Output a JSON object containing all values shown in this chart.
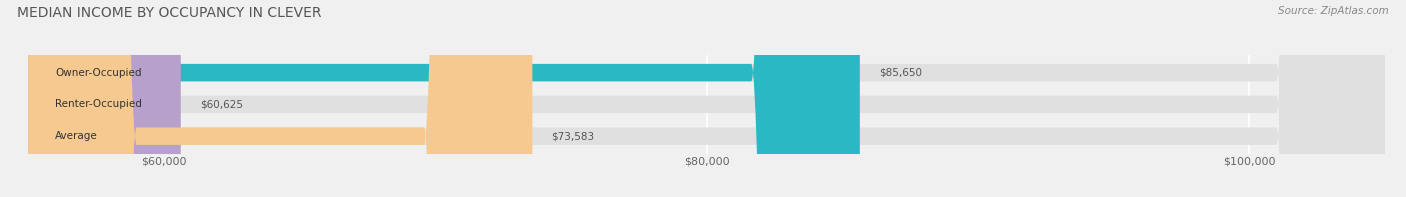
{
  "title": "MEDIAN INCOME BY OCCUPANCY IN CLEVER",
  "source": "Source: ZipAtlas.com",
  "categories": [
    "Owner-Occupied",
    "Renter-Occupied",
    "Average"
  ],
  "values": [
    85650,
    60625,
    73583
  ],
  "labels": [
    "$85,650",
    "$60,625",
    "$73,583"
  ],
  "bar_colors": [
    "#2ab8c4",
    "#b8a0cc",
    "#f5c990"
  ],
  "bar_bg_color": "#e0e0e0",
  "xmin": 55000,
  "xmax": 105000,
  "xticks": [
    60000,
    80000,
    100000
  ],
  "xtick_labels": [
    "$60,000",
    "$80,000",
    "$100,000"
  ],
  "title_fontsize": 10,
  "source_fontsize": 7.5,
  "label_fontsize": 7.5,
  "cat_fontsize": 7.5,
  "bg_color": "#f0f0f0"
}
